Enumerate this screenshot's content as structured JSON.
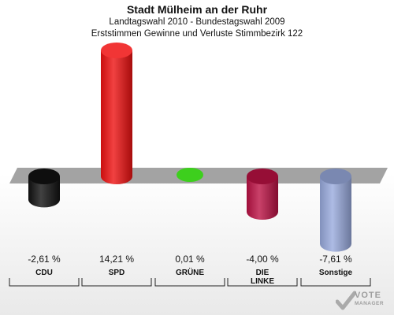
{
  "chart_data": {
    "type": "bar",
    "title": "Stadt Mülheim an der Ruhr",
    "subtitle": "Landtagswahl 2010 - Bundestagswahl 2009",
    "subtitle2": "Erststimmen Gewinne und Verluste Stimmbezirk 122",
    "categories": [
      "CDU",
      "SPD",
      "GRÜNE",
      "DIE LINKE",
      "Sonstige"
    ],
    "category_lines": [
      [
        "CDU"
      ],
      [
        "SPD"
      ],
      [
        "GRÜNE"
      ],
      [
        "DIE",
        "LINKE"
      ],
      [
        "Sonstige"
      ]
    ],
    "values": [
      -2.61,
      14.21,
      0.01,
      -4.0,
      -7.61
    ],
    "value_labels": [
      "-2,61 %",
      "14,21 %",
      "0,01 %",
      "-4,00 %",
      "-7,61 %"
    ],
    "colors": [
      "#111111",
      "#ee1111",
      "#33cc11",
      "#bb1144",
      "#99aadd"
    ],
    "ylim": [
      -8,
      15
    ],
    "legend": "none",
    "grid": false
  },
  "watermark": {
    "line1": "VOTE",
    "line2": "MANAGER"
  }
}
